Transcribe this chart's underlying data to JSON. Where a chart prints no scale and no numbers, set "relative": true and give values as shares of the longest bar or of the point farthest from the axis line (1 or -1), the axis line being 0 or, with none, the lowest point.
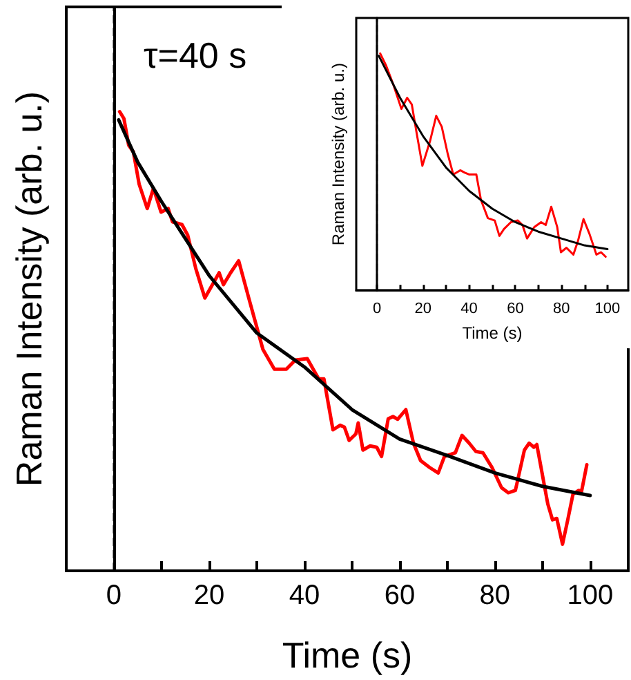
{
  "chart_data": [
    {
      "type": "line",
      "relative": true,
      "xlabel": "Time (s)",
      "ylabel": "Raman Intensity (arb. u.)",
      "marker": "none",
      "line_style": "solid",
      "xlim": [
        -10,
        108
      ],
      "xticks": [
        0,
        {
          "value": 10,
          "label": null
        },
        20,
        {
          "value": 30,
          "label": null
        },
        40,
        {
          "value": 50,
          "label": null
        },
        60,
        {
          "value": 70,
          "label": null
        },
        80,
        {
          "value": 90,
          "label": null
        },
        100
      ],
      "annotations": [
        "τ=40 s"
      ],
      "ref_lines": [
        {
          "axis": "x",
          "value": 0,
          "color": "#000000",
          "line_style": "dashed"
        }
      ],
      "series": [
        {
          "color": "#ff0000",
          "x": [
            1.2,
            2.1,
            3.1,
            4.1,
            5.3,
            7.0,
            8.3,
            9.9,
            11.4,
            12.3,
            14.3,
            15.5,
            17.2,
            19.1,
            22.1,
            23.0,
            24.5,
            26.2,
            28.4,
            31.3,
            33.7,
            36.2,
            38.1,
            40.6,
            43.0,
            44.1,
            46.0,
            47.5,
            48.4,
            49.4,
            50.8,
            51.3,
            52.3,
            53.8,
            55.2,
            56.2,
            57.6,
            58.6,
            59.6,
            61.3,
            62.9,
            64.4,
            66.3,
            68.1,
            69.4,
            71.7,
            73.1,
            74.6,
            76.0,
            77.5,
            79.4,
            81.4,
            82.8,
            84.3,
            86.2,
            87.2,
            88.2,
            88.8,
            91.1,
            92.1,
            93.0,
            94.2,
            95.3,
            96.4,
            97.6,
            98.2,
            99.3
          ],
          "values": [
            1.0,
            0.985,
            0.927,
            0.912,
            0.842,
            0.789,
            0.833,
            0.781,
            0.789,
            0.76,
            0.754,
            0.731,
            0.658,
            0.594,
            0.649,
            0.623,
            0.649,
            0.675,
            0.591,
            0.482,
            0.439,
            0.439,
            0.459,
            0.462,
            0.418,
            0.418,
            0.307,
            0.317,
            0.313,
            0.284,
            0.298,
            0.322,
            0.263,
            0.272,
            0.269,
            0.249,
            0.331,
            0.336,
            0.33,
            0.351,
            0.278,
            0.24,
            0.225,
            0.213,
            0.249,
            0.257,
            0.295,
            0.278,
            0.26,
            0.257,
            0.225,
            0.181,
            0.17,
            0.175,
            0.263,
            0.278,
            0.269,
            0.275,
            0.146,
            0.111,
            0.114,
            0.058,
            0.111,
            0.167,
            0.175,
            0.173,
            0.231
          ]
        },
        {
          "color": "#000000",
          "x": [
            1,
            5,
            10,
            20,
            30,
            40,
            50,
            60,
            70,
            80,
            90,
            100
          ],
          "values": [
            0.982,
            0.89,
            0.804,
            0.643,
            0.518,
            0.444,
            0.351,
            0.287,
            0.251,
            0.213,
            0.184,
            0.164
          ]
        }
      ]
    },
    {
      "type": "line",
      "relative": true,
      "xlabel": "Time (s)",
      "ylabel": "Raman Intensity (arb. u.)",
      "marker": "none",
      "line_style": "solid",
      "xlim": [
        -9,
        109
      ],
      "xticks": [
        0,
        {
          "value": 10,
          "label": null
        },
        20,
        {
          "value": 30,
          "label": null
        },
        40,
        {
          "value": 50,
          "label": null
        },
        60,
        {
          "value": 70,
          "label": null
        },
        80,
        {
          "value": 90,
          "label": null
        },
        100
      ],
      "ref_lines": [
        {
          "axis": "x",
          "value": 0,
          "color": "#000000",
          "line_style": "dashed"
        }
      ],
      "series": [
        {
          "color": "#ff0000",
          "x": [
            1.4,
            4.0,
            7.0,
            10.6,
            13.1,
            15.1,
            17.1,
            19.7,
            23.1,
            25.7,
            28.1,
            30.7,
            33.1,
            36.1,
            38.1,
            40.1,
            43.1,
            45.1,
            48.1,
            51.1,
            53.1,
            55.1,
            58.1,
            61.1,
            63.1,
            65.1,
            68.2,
            71.2,
            73.2,
            75.6,
            78.2,
            79.8,
            82.2,
            85.2,
            87.2,
            89.6,
            92.2,
            95.2,
            97.2,
            99.2
          ],
          "values": [
            1.0,
            0.948,
            0.871,
            0.766,
            0.813,
            0.785,
            0.67,
            0.526,
            0.633,
            0.737,
            0.691,
            0.576,
            0.489,
            0.507,
            0.497,
            0.489,
            0.489,
            0.382,
            0.305,
            0.295,
            0.23,
            0.259,
            0.288,
            0.295,
            0.276,
            0.219,
            0.267,
            0.288,
            0.276,
            0.353,
            0.267,
            0.161,
            0.18,
            0.151,
            0.209,
            0.301,
            0.238,
            0.151,
            0.161,
            0.142
          ]
        },
        {
          "color": "#000000",
          "x": [
            0.8,
            10,
            20,
            30,
            40,
            50,
            60,
            70,
            80,
            90,
            100
          ],
          "values": [
            0.99,
            0.813,
            0.651,
            0.518,
            0.42,
            0.345,
            0.288,
            0.248,
            0.219,
            0.19,
            0.174
          ]
        }
      ]
    }
  ]
}
